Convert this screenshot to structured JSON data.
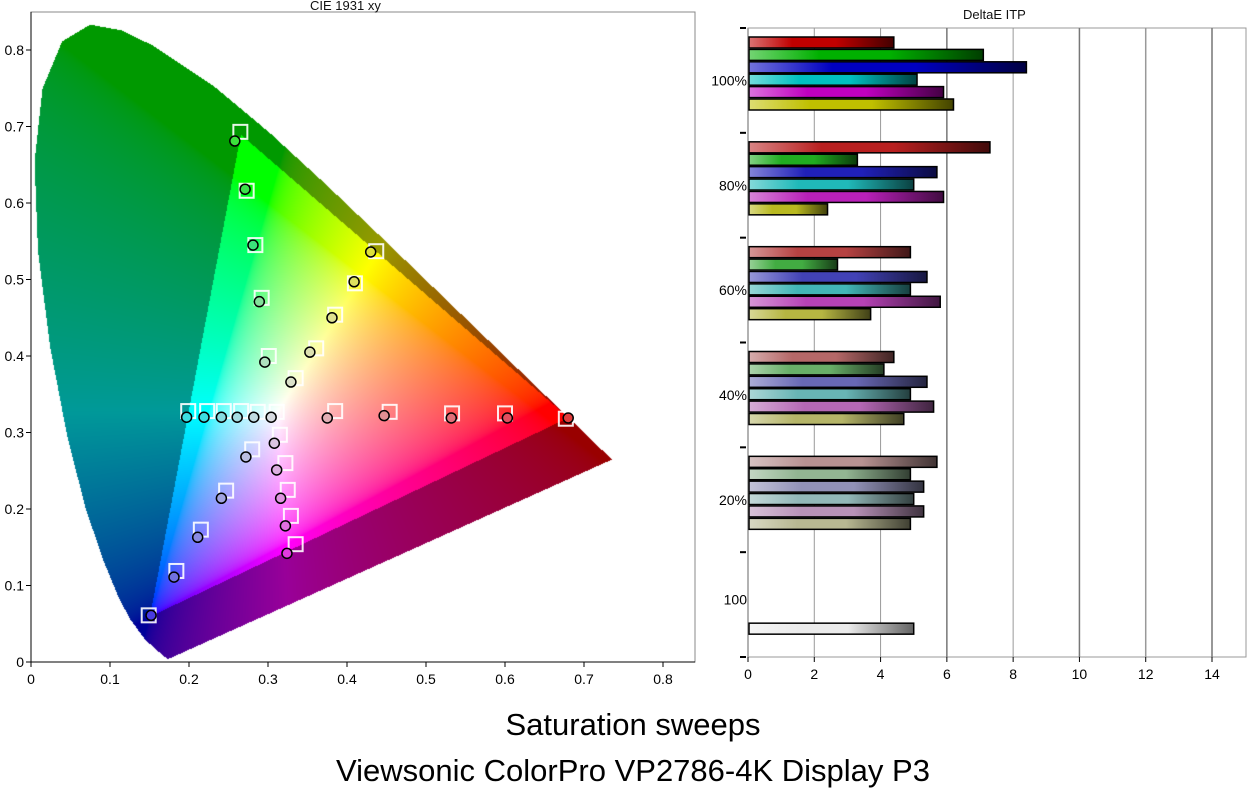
{
  "chart_data": [
    {
      "type": "scatter",
      "title": "CIE 1931 xy",
      "xlabel": "",
      "ylabel": "",
      "xlim": [
        0,
        0.84
      ],
      "ylim": [
        0,
        0.85
      ],
      "xticks": [
        "0",
        "0.1",
        "0.2",
        "0.3",
        "0.4",
        "0.5",
        "0.6",
        "0.7",
        "0.8"
      ],
      "yticks": [
        "0",
        "0.1",
        "0.2",
        "0.3",
        "0.4",
        "0.5",
        "0.6",
        "0.7",
        "0.8"
      ],
      "gamut_triangle": [
        [
          0.68,
          0.32
        ],
        [
          0.265,
          0.69
        ],
        [
          0.15,
          0.06
        ]
      ],
      "spectral_locus": [
        [
          0.1741,
          0.005
        ],
        [
          0.1714,
          0.0051
        ],
        [
          0.1644,
          0.0109
        ],
        [
          0.144,
          0.0297
        ],
        [
          0.1241,
          0.0578
        ],
        [
          0.1096,
          0.0868
        ],
        [
          0.0913,
          0.1327
        ],
        [
          0.0687,
          0.2007
        ],
        [
          0.0454,
          0.295
        ],
        [
          0.0235,
          0.4127
        ],
        [
          0.0082,
          0.5384
        ],
        [
          0.0039,
          0.6548
        ],
        [
          0.0139,
          0.7502
        ],
        [
          0.0389,
          0.812
        ],
        [
          0.0743,
          0.8338
        ],
        [
          0.1142,
          0.8262
        ],
        [
          0.1547,
          0.8059
        ],
        [
          0.2296,
          0.7543
        ],
        [
          0.3016,
          0.6923
        ],
        [
          0.3731,
          0.6245
        ],
        [
          0.4441,
          0.5547
        ],
        [
          0.5125,
          0.4866
        ],
        [
          0.5752,
          0.4242
        ],
        [
          0.627,
          0.3725
        ],
        [
          0.6915,
          0.3083
        ],
        [
          0.719,
          0.2809
        ],
        [
          0.7347,
          0.2653
        ]
      ],
      "series": [
        {
          "name": "green",
          "targets": [
            [
              0.265,
              0.693
            ],
            [
              0.273,
              0.616
            ],
            [
              0.284,
              0.545
            ],
            [
              0.292,
              0.476
            ],
            [
              0.301,
              0.4
            ]
          ],
          "measured": [
            [
              0.258,
              0.681
            ],
            [
              0.271,
              0.618
            ],
            [
              0.281,
              0.545
            ],
            [
              0.289,
              0.471
            ],
            [
              0.296,
              0.392
            ]
          ]
        },
        {
          "name": "yellow",
          "targets": [
            [
              0.437,
              0.537
            ],
            [
              0.41,
              0.495
            ],
            [
              0.385,
              0.454
            ],
            [
              0.361,
              0.41
            ],
            [
              0.335,
              0.371
            ]
          ],
          "measured": [
            [
              0.43,
              0.536
            ],
            [
              0.409,
              0.497
            ],
            [
              0.381,
              0.45
            ],
            [
              0.353,
              0.405
            ],
            [
              0.329,
              0.366
            ]
          ]
        },
        {
          "name": "cyan",
          "targets": [
            [
              0.199,
              0.328
            ],
            [
              0.223,
              0.328
            ],
            [
              0.244,
              0.328
            ],
            [
              0.266,
              0.328
            ],
            [
              0.287,
              0.327
            ],
            [
              0.311,
              0.327
            ]
          ],
          "measured": [
            [
              0.197,
              0.32
            ],
            [
              0.219,
              0.32
            ],
            [
              0.241,
              0.32
            ],
            [
              0.261,
              0.32
            ],
            [
              0.282,
              0.32
            ],
            [
              0.304,
              0.32
            ]
          ]
        },
        {
          "name": "red",
          "targets": [
            [
              0.385,
              0.328
            ],
            [
              0.454,
              0.327
            ],
            [
              0.533,
              0.325
            ],
            [
              0.6,
              0.325
            ],
            [
              0.677,
              0.318
            ]
          ],
          "measured": [
            [
              0.375,
              0.319
            ],
            [
              0.447,
              0.322
            ],
            [
              0.532,
              0.319
            ],
            [
              0.603,
              0.319
            ],
            [
              0.68,
              0.319
            ]
          ]
        },
        {
          "name": "magenta",
          "targets": [
            [
              0.315,
              0.297
            ],
            [
              0.322,
              0.26
            ],
            [
              0.325,
              0.225
            ],
            [
              0.329,
              0.191
            ],
            [
              0.335,
              0.154
            ]
          ],
          "measured": [
            [
              0.308,
              0.286
            ],
            [
              0.311,
              0.251
            ],
            [
              0.316,
              0.214
            ],
            [
              0.322,
              0.178
            ],
            [
              0.324,
              0.142
            ]
          ]
        },
        {
          "name": "blue",
          "targets": [
            [
              0.28,
              0.278
            ],
            [
              0.247,
              0.224
            ],
            [
              0.215,
              0.173
            ],
            [
              0.184,
              0.119
            ],
            [
              0.149,
              0.061
            ]
          ],
          "measured": [
            [
              0.272,
              0.268
            ],
            [
              0.241,
              0.214
            ],
            [
              0.211,
              0.163
            ],
            [
              0.181,
              0.111
            ],
            [
              0.152,
              0.061
            ]
          ]
        }
      ]
    },
    {
      "type": "bar",
      "orientation": "horizontal",
      "title": "DeltaE ITP",
      "xlim": [
        0,
        15
      ],
      "xticks": [
        "0",
        "2",
        "4",
        "6",
        "8",
        "10",
        "12",
        "14"
      ],
      "categories": [
        "100%",
        "80%",
        "60%",
        "40%",
        "20%",
        "100"
      ],
      "series_colors": {
        "red": "#c00000",
        "green": "#00b000",
        "blue": "#0000c0",
        "cyan": "#00c0c0",
        "magenta": "#c000c0",
        "yellow": "#c0c000",
        "white": "#ffffff"
      },
      "groups": [
        {
          "label": "100%",
          "saturation": 1.0,
          "values": {
            "red": 4.4,
            "green": 7.1,
            "blue": 8.4,
            "cyan": 5.1,
            "magenta": 5.9,
            "yellow": 6.2
          }
        },
        {
          "label": "80%",
          "saturation": 0.8,
          "values": {
            "red": 7.3,
            "green": 3.3,
            "blue": 5.7,
            "cyan": 5.0,
            "magenta": 5.9,
            "yellow": 2.4
          }
        },
        {
          "label": "60%",
          "saturation": 0.6,
          "values": {
            "red": 4.9,
            "green": 2.7,
            "blue": 5.4,
            "cyan": 4.9,
            "magenta": 5.8,
            "yellow": 3.7
          }
        },
        {
          "label": "40%",
          "saturation": 0.4,
          "values": {
            "red": 4.4,
            "green": 4.1,
            "blue": 5.4,
            "cyan": 4.9,
            "magenta": 5.6,
            "yellow": 4.7
          }
        },
        {
          "label": "20%",
          "saturation": 0.2,
          "values": {
            "red": 5.7,
            "green": 4.9,
            "blue": 5.3,
            "cyan": 5.0,
            "magenta": 5.3,
            "yellow": 4.9
          }
        },
        {
          "label": "100",
          "saturation": 0.0,
          "values": {
            "white": 5.0
          }
        }
      ]
    }
  ],
  "footer": {
    "title": "Saturation sweeps",
    "subtitle": "Viewsonic ColorPro VP2786-4K Display P3"
  }
}
